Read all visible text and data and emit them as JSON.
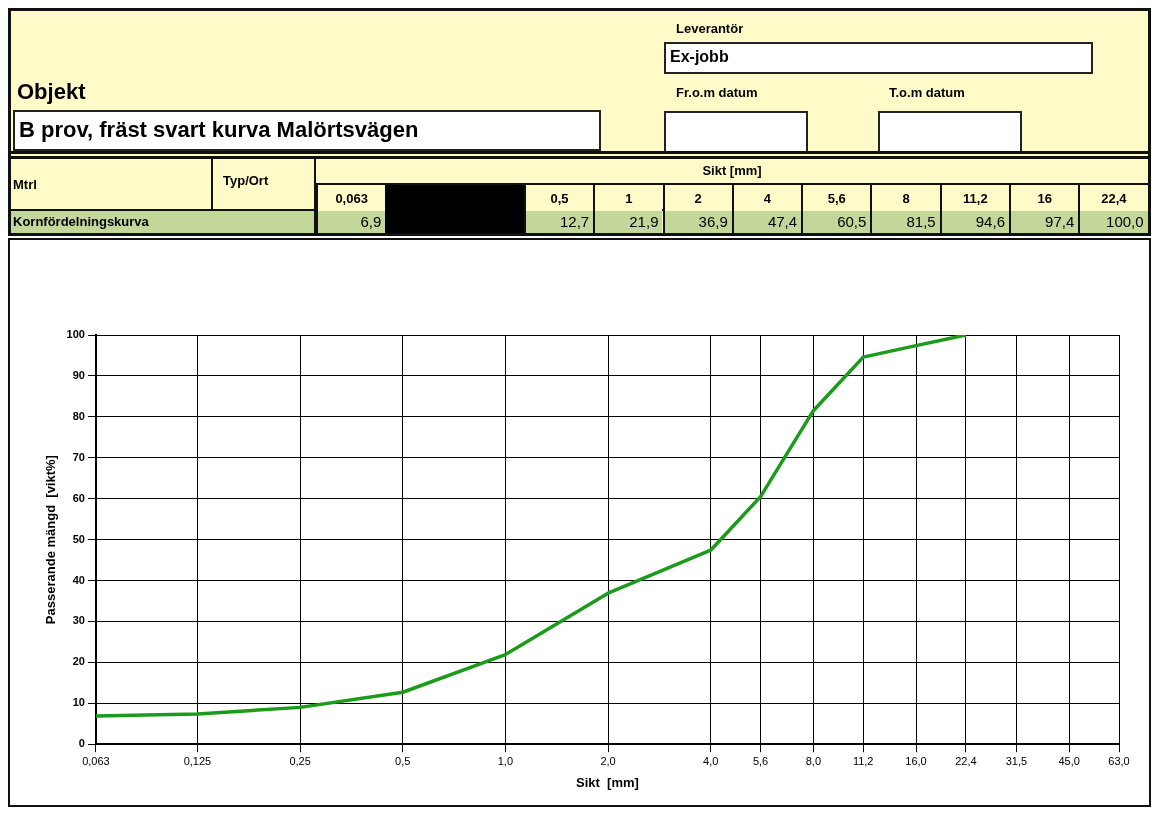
{
  "chart_data": {
    "type": "line",
    "title": "B prov, fräst svart kurva Malörtsvägen",
    "annotations": [
      "Objekt",
      "Leverantör",
      "Ex-jobb",
      "Fr.o.m datum",
      "T.o.m datum",
      "Mtrl",
      "Typ/Ort",
      "Sikt [mm]",
      "Kornfördelningskurva",
      "0,063",
      "0,5",
      "1",
      "2",
      "4",
      "5,6",
      "8",
      "11,2",
      "16",
      "22,4",
      "6,9",
      "12,7",
      "21,9",
      "36,9",
      "47,4",
      "60,5",
      "81,5",
      "94,6",
      "97,4",
      "100,0"
    ],
    "xlabel": "Sikt  [mm]",
    "ylabel": "Passerande mängd  [vikt%]",
    "x": [
      0.063,
      0.125,
      0.25,
      0.5,
      1,
      2,
      4,
      5.6,
      8,
      11.2,
      16,
      22.4
    ],
    "values": [
      6.9,
      7.4,
      9.0,
      12.7,
      21.9,
      36.9,
      47.4,
      60.5,
      81.5,
      94.6,
      97.4,
      100.0
    ],
    "color": "#1a9c1a",
    "log": "x",
    "xlim": [
      0.063,
      63
    ],
    "xticks": [
      {
        "value": 0.063,
        "label": "0,063"
      },
      {
        "value": 0.125,
        "label": "0,125"
      },
      {
        "value": 0.25,
        "label": "0,25"
      },
      {
        "value": 0.5,
        "label": "0,5"
      },
      {
        "value": 1,
        "label": "1,0"
      },
      {
        "value": 2,
        "label": "2,0"
      },
      {
        "value": 4,
        "label": "4,0"
      },
      {
        "value": 5.6,
        "label": "5,6"
      },
      {
        "value": 8,
        "label": "8,0"
      },
      {
        "value": 11.2,
        "label": "11,2"
      },
      {
        "value": 16,
        "label": "16,0"
      },
      {
        "value": 22.4,
        "label": "22,4"
      },
      {
        "value": 31.5,
        "label": "31,5"
      },
      {
        "value": 45,
        "label": "45,0"
      },
      {
        "value": 63,
        "label": "63,0"
      }
    ],
    "ylim": [
      0,
      100
    ],
    "yticks": [
      0,
      10,
      20,
      30,
      40,
      50,
      60,
      70,
      80,
      90,
      100
    ],
    "grid": true,
    "marker": "none",
    "line_style": "solid"
  }
}
